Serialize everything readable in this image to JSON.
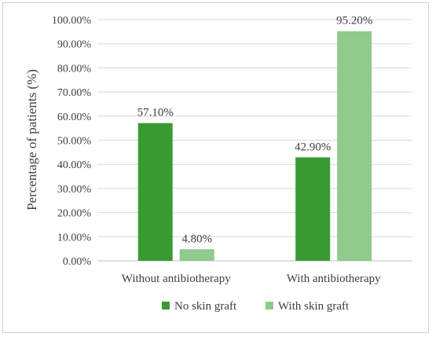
{
  "chart_data": {
    "type": "bar",
    "title": "",
    "xlabel": "",
    "ylabel": "Percentage of patients (%)",
    "ylim": [
      0,
      100
    ],
    "y_tick_step": 10,
    "grid": true,
    "legend_position": "bottom",
    "categories": [
      "Without antibiotherapy",
      "With antibiotherapy"
    ],
    "series": [
      {
        "name": "No skin graft",
        "values": [
          57.1,
          42.9
        ],
        "labels": [
          "57.10%",
          "42.90%"
        ],
        "color": "#3a9a32"
      },
      {
        "name": "With skin graft",
        "values": [
          4.8,
          95.2
        ],
        "labels": [
          "4.80%",
          "95.20%"
        ],
        "color": "#92c98c"
      }
    ],
    "y_tick_labels": [
      "0.00%",
      "10.00%",
      "20.00%",
      "30.00%",
      "40.00%",
      "50.00%",
      "60.00%",
      "70.00%",
      "80.00%",
      "90.00%",
      "100.00%"
    ]
  }
}
